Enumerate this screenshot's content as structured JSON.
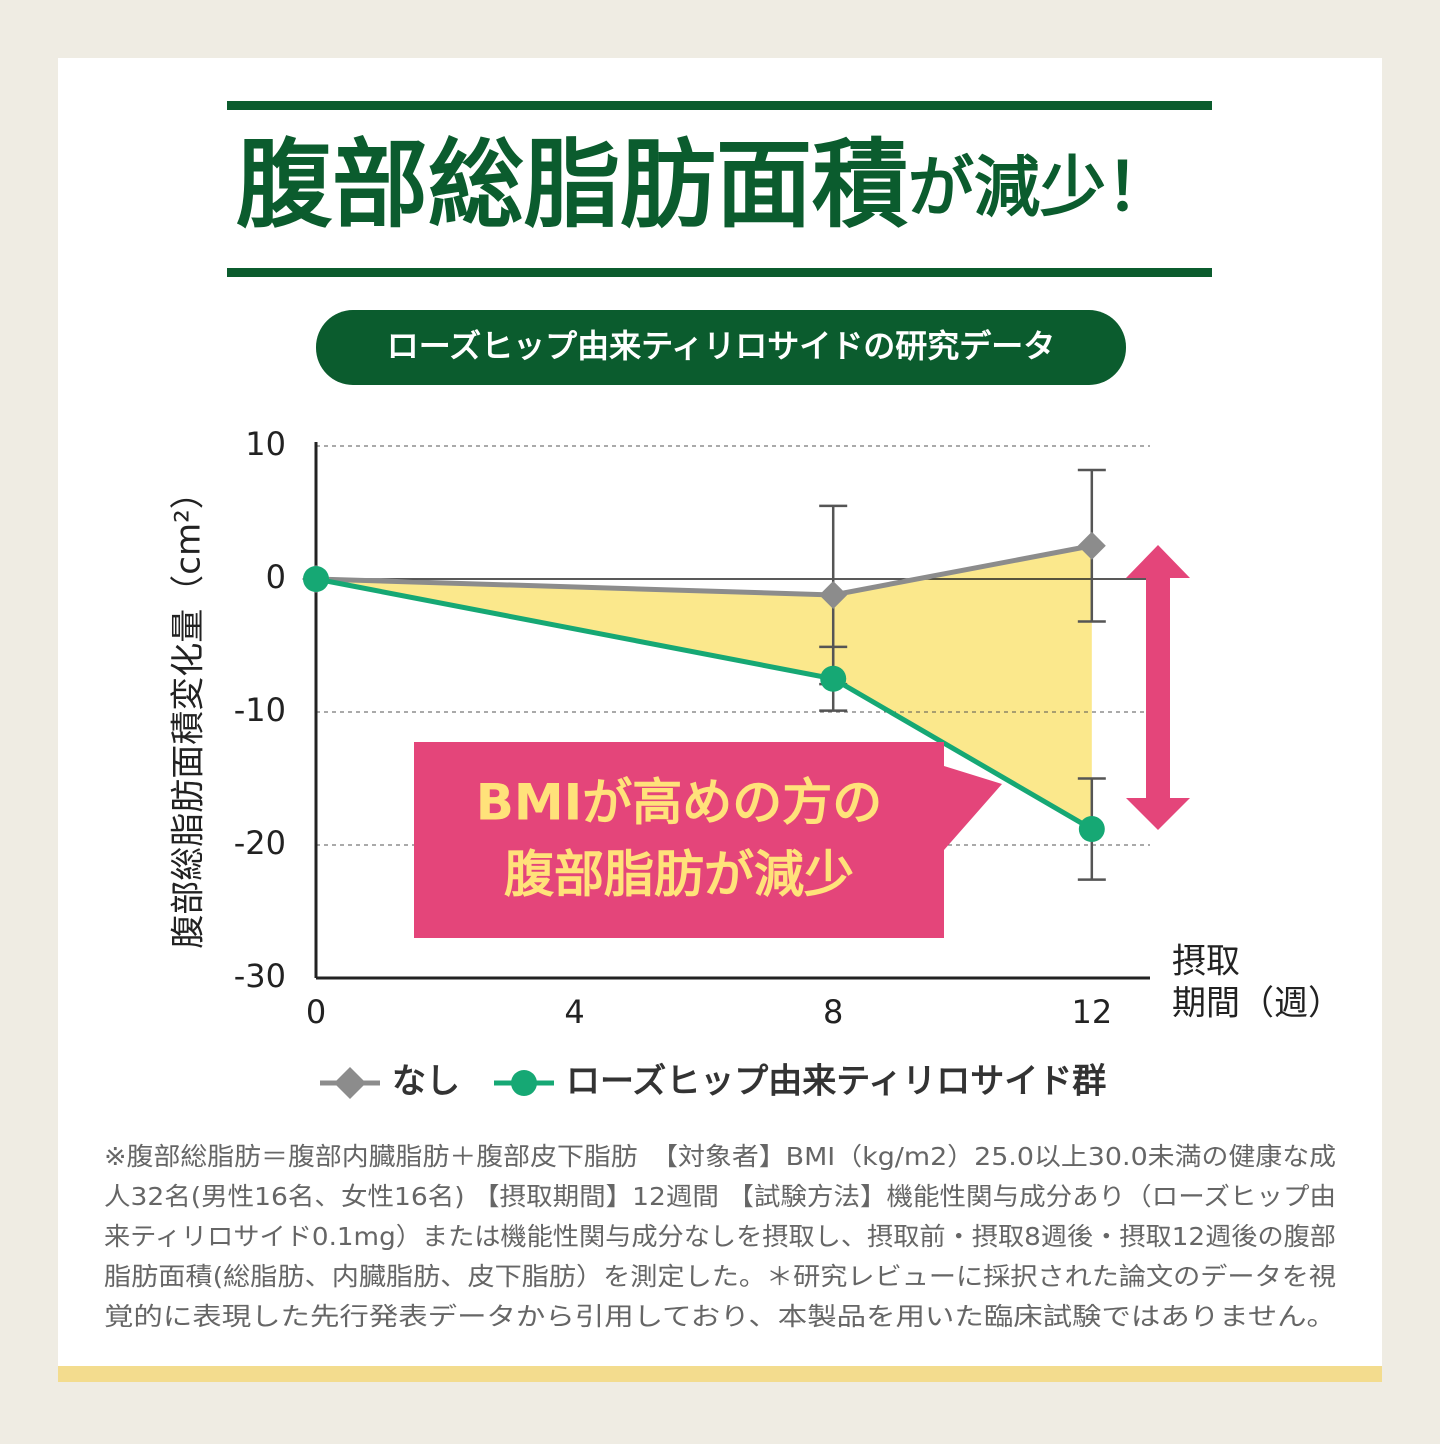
{
  "header": {
    "title_main": "腹部総脂肪面積",
    "title_tail": "が減少！",
    "subtitle": "ローズヒップ由来ティリロサイドの研究データ"
  },
  "chart_data": {
    "type": "line",
    "y_label": "腹部総脂肪面積変化量（cm²）",
    "x_label": [
      "摂取",
      "期間（週）"
    ],
    "x": [
      0,
      8,
      12
    ],
    "xlim": [
      0,
      12.9
    ],
    "xticks": [
      0,
      4,
      8,
      12
    ],
    "ylim": [
      -30,
      10
    ],
    "yticks": [
      -30,
      -20,
      -10,
      0,
      10
    ],
    "series": [
      {
        "name": "なし",
        "color": "#8c8c8c",
        "marker": "diamond",
        "values": [
          0,
          -1.2,
          2.5
        ],
        "errors": [
          null,
          6.7,
          5.7
        ]
      },
      {
        "name": "ローズヒップ由来ティリロサイド群",
        "color": "#16a874",
        "marker": "circle",
        "values": [
          0,
          -7.5,
          -18.8
        ],
        "errors": [
          null,
          2.4,
          3.8
        ]
      }
    ],
    "fill_color": "#fbe88c",
    "callout": [
      "BMIが高めの方の",
      "腹部脂肪が減少"
    ]
  },
  "footnote": [
    "※腹部総脂肪＝腹部内臓脂肪＋腹部皮下脂肪　【対象者】BMI（kg/m2）25.0以上30.0未満の健康な成",
    "人32名(男性16名、女性16名) 【摂取期間】12週間 【試験方法】機能性関与成分あり（ローズヒップ由",
    "来ティリロサイド0.1mg）または機能性関与成分なしを摂取し、摂取前・摂取8週後・摂取12週後の腹部",
    "脂肪面積(総脂肪、内臓脂肪、皮下脂肪）を測定した。＊研究レビューに採択された論文のデータを視",
    "覚的に表現した先行発表データから引用しており、本製品を用いた臨床試験ではありません。"
  ]
}
